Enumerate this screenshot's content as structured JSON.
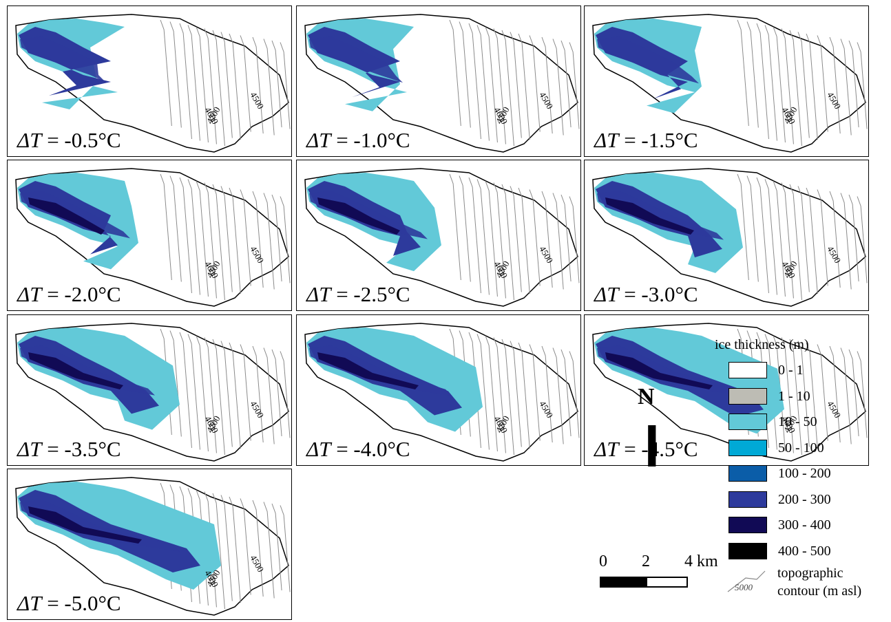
{
  "panels": [
    {
      "label": "-0.5°C",
      "level": 0
    },
    {
      "label": "-1.0°C",
      "level": 1
    },
    {
      "label": "-1.5°C",
      "level": 2
    },
    {
      "label": "-2.0°C",
      "level": 3
    },
    {
      "label": "-2.5°C",
      "level": 4
    },
    {
      "label": "-3.0°C",
      "level": 5
    },
    {
      "label": "-3.5°C",
      "level": 6
    },
    {
      "label": "-4.0°C",
      "level": 7
    },
    {
      "label": "-4.5°C",
      "level": 8
    },
    {
      "label": "-5.0°C",
      "level": 9
    }
  ],
  "delta_t_symbol": "ΔT",
  "delta_t_eq": " = ",
  "contour_labels": [
    "4500",
    "4600",
    "4700"
  ],
  "legend": {
    "title": "ice thickness (m)",
    "classes": [
      {
        "label": "0 - 1",
        "color": "#ffffff"
      },
      {
        "label": "1 - 10",
        "color": "#bdbcb4"
      },
      {
        "label": "10 - 50",
        "color": "#62c9d8"
      },
      {
        "label": "50 - 100",
        "color": "#00a9d6"
      },
      {
        "label": "100 - 200",
        "color": "#0b5da8"
      },
      {
        "label": "200 - 300",
        "color": "#2d3a9c"
      },
      {
        "label": "300 - 400",
        "color": "#110a55"
      },
      {
        "label": "400 - 500",
        "color": "#000000"
      }
    ],
    "topo_line1": "topographic",
    "topo_line2": "contour (m asl)",
    "topo_sample": "5000"
  },
  "north": "N",
  "scale": {
    "ticks": [
      "0",
      "2",
      "4 km"
    ]
  }
}
